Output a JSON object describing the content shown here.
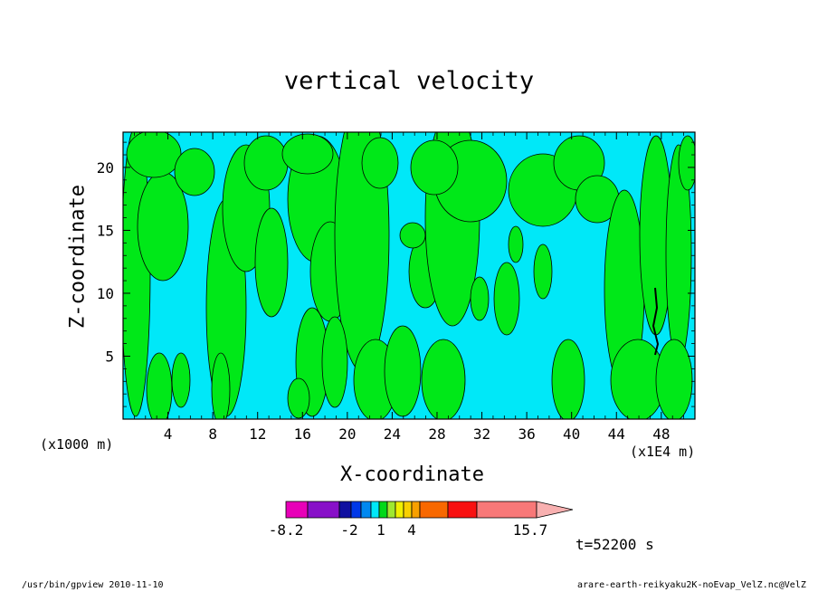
{
  "chart_data": {
    "type": "heatmap",
    "title": "vertical velocity",
    "xlabel": "X-coordinate",
    "ylabel": "Z-coordinate",
    "x_unit_left": "(x1000 m)",
    "x_unit_right": "(x1E4 m)",
    "xlim": [
      0,
      51
    ],
    "ylim": [
      0,
      22.8
    ],
    "x_ticks": [
      "4",
      "8",
      "12",
      "16",
      "20",
      "24",
      "28",
      "32",
      "36",
      "40",
      "44",
      "48"
    ],
    "y_ticks": [
      "5",
      "10",
      "15",
      "20"
    ],
    "fill_colors": {
      "background": "#00e8f8",
      "updraft": "#00e818",
      "strong": "#000000"
    },
    "colorbar": {
      "colors": [
        "#e800b8",
        "#8810c8",
        "#1010a0",
        "#0038e8",
        "#0088f0",
        "#00e8f8",
        "#00d818",
        "#a0e830",
        "#f0f000",
        "#f8d000",
        "#f8a000",
        "#f86800",
        "#f81010",
        "#f87878",
        "#f8b0b0"
      ],
      "tick_labels": [
        "-8.2",
        "-2",
        "1",
        "4",
        "15.7"
      ]
    },
    "timestamp": "t=52200 s"
  },
  "footer": {
    "left": "/usr/bin/gpview  2010-11-10",
    "right": "arare-earth-reikyaku2K-noEvap_VelZ.nc@VelZ"
  }
}
